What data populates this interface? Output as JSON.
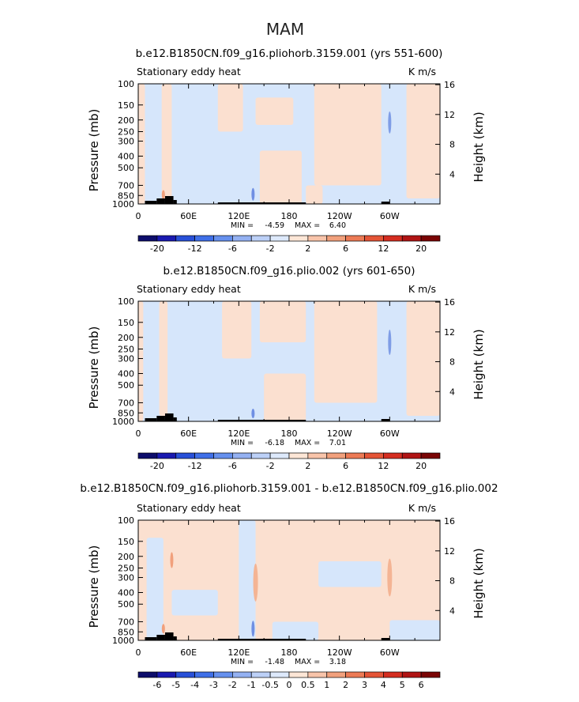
{
  "page_title": "MAM",
  "colors": {
    "lightblue": "#d6e6fb",
    "lightorange": "#fbe0d0",
    "black": "#000000"
  },
  "chart_data": [
    {
      "type": "heatmap",
      "title": "b.e12.B1850CN.f09_g16.pliohorb.3159.001 (yrs 551-600)",
      "left_label": "Stationary eddy heat",
      "right_label": "K m/s",
      "ylabel": "Pressure (mb)",
      "ylabel_right": "Height (km)",
      "xticks": [
        "0",
        "60E",
        "120E",
        "180",
        "120W",
        "60W"
      ],
      "yticks": [
        "100",
        "150",
        "200",
        "250",
        "300",
        "400",
        "500",
        "700",
        "850",
        "1000"
      ],
      "height_ticks": [
        "16",
        "12",
        "8",
        "4"
      ],
      "stats": {
        "min_label": "MIN =",
        "min": "-4.59",
        "max_label": "MAX =",
        "max": "6.40"
      },
      "colorbar": {
        "labels": [
          "-20",
          "-12",
          "-6",
          "-2",
          "2",
          "6",
          "12",
          "20"
        ],
        "colors": [
          "#0d0d6b",
          "#1a1ab0",
          "#2850d8",
          "#3f6fe8",
          "#6690ee",
          "#94b1f2",
          "#bcd0f7",
          "#dde9fb",
          "#fde6d6",
          "#f8c4aa",
          "#f1a07c",
          "#ec7a55",
          "#e45436",
          "#d42d20",
          "#b01414",
          "#7a0505"
        ]
      }
    },
    {
      "type": "heatmap",
      "title": "b.e12.B1850CN.f09_g16.plio.002 (yrs 601-650)",
      "left_label": "Stationary eddy heat",
      "right_label": "K m/s",
      "ylabel": "Pressure (mb)",
      "ylabel_right": "Height (km)",
      "xticks": [
        "0",
        "60E",
        "120E",
        "180",
        "120W",
        "60W"
      ],
      "yticks": [
        "100",
        "150",
        "200",
        "250",
        "300",
        "400",
        "500",
        "700",
        "850",
        "1000"
      ],
      "height_ticks": [
        "16",
        "12",
        "8",
        "4"
      ],
      "stats": {
        "min_label": "MIN =",
        "min": "-6.18",
        "max_label": "MAX =",
        "max": "7.01"
      },
      "colorbar": {
        "labels": [
          "-20",
          "-12",
          "-6",
          "-2",
          "2",
          "6",
          "12",
          "20"
        ],
        "colors": [
          "#0d0d6b",
          "#1a1ab0",
          "#2850d8",
          "#3f6fe8",
          "#6690ee",
          "#94b1f2",
          "#bcd0f7",
          "#dde9fb",
          "#fde6d6",
          "#f8c4aa",
          "#f1a07c",
          "#ec7a55",
          "#e45436",
          "#d42d20",
          "#b01414",
          "#7a0505"
        ]
      }
    },
    {
      "type": "heatmap",
      "title": "b.e12.B1850CN.f09_g16.pliohorb.3159.001 - b.e12.B1850CN.f09_g16.plio.002",
      "left_label": "Stationary eddy heat",
      "right_label": "K m/s",
      "ylabel": "Pressure (mb)",
      "ylabel_right": "Height (km)",
      "xticks": [
        "0",
        "60E",
        "120E",
        "180",
        "120W",
        "60W"
      ],
      "yticks": [
        "100",
        "150",
        "200",
        "250",
        "300",
        "400",
        "500",
        "700",
        "850",
        "1000"
      ],
      "height_ticks": [
        "16",
        "12",
        "8",
        "4"
      ],
      "stats": {
        "min_label": "MIN =",
        "min": "-1.48",
        "max_label": "MAX =",
        "max": "3.18"
      },
      "colorbar": {
        "labels": [
          "-6",
          "-5",
          "-4",
          "-3",
          "-2",
          "-1",
          "-0.5",
          "0",
          "0.5",
          "1",
          "2",
          "3",
          "4",
          "5",
          "6"
        ],
        "colors": [
          "#0d0d6b",
          "#1a1ab0",
          "#2850d8",
          "#3f6fe8",
          "#6690ee",
          "#94b1f2",
          "#bcd0f7",
          "#dde9fb",
          "#fde6d6",
          "#f8c4aa",
          "#f1a07c",
          "#ec7a55",
          "#e45436",
          "#d42d20",
          "#b01414",
          "#7a0505"
        ]
      }
    }
  ]
}
